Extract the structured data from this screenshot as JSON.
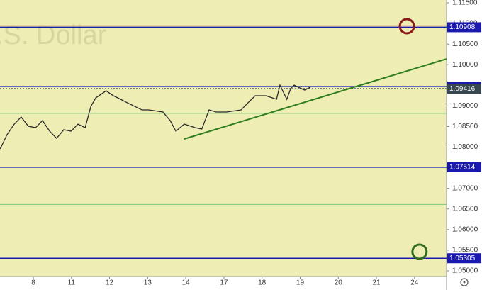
{
  "chart_data": {
    "type": "line",
    "watermark": ".S. Dollar",
    "x": [
      -0.87,
      -0.69,
      -0.5,
      -0.32,
      -0.13,
      0.06,
      0.24,
      0.43,
      0.61,
      0.8,
      0.99,
      1.17,
      1.36,
      1.51,
      1.64,
      1.91,
      2.1,
      2.29,
      2.47,
      2.66,
      2.85,
      3.03,
      3.4,
      3.59,
      3.74,
      3.96,
      4.24,
      4.42,
      4.61,
      4.8,
      5.07,
      5.45,
      5.63,
      5.82,
      6.1,
      6.38,
      6.47,
      6.65,
      6.75,
      6.84,
      7.03,
      7.12,
      7.27
    ],
    "series": [
      {
        "color": "#2b2b2b",
        "values": [
          1.07957,
          1.08301,
          1.08559,
          1.08731,
          1.08508,
          1.08473,
          1.08645,
          1.08387,
          1.08215,
          1.08422,
          1.08387,
          1.08559,
          1.08473,
          1.08989,
          1.09196,
          1.09367,
          1.09247,
          1.09161,
          1.09075,
          1.08989,
          1.08903,
          1.08903,
          1.08852,
          1.08645,
          1.08387,
          1.08559,
          1.08473,
          1.08439,
          1.08903,
          1.08852,
          1.08852,
          1.08903,
          1.09075,
          1.09247,
          1.09247,
          1.09161,
          1.09505,
          1.09161,
          1.09419,
          1.09505,
          1.09419,
          1.09385,
          1.09454
        ]
      }
    ],
    "xlim": [
      -0.874,
      10.84
    ],
    "ylim": [
      1.04862,
      1.11569
    ],
    "xticks": [
      {
        "value": 0,
        "label": "8"
      },
      {
        "value": 1,
        "label": "11"
      },
      {
        "value": 2,
        "label": "12"
      },
      {
        "value": 3,
        "label": "13"
      },
      {
        "value": 4,
        "label": "14"
      },
      {
        "value": 5,
        "label": "17"
      },
      {
        "value": 6,
        "label": "18"
      },
      {
        "value": 7,
        "label": "19"
      },
      {
        "value": 8,
        "label": "20"
      },
      {
        "value": 9,
        "label": "21"
      },
      {
        "value": 10,
        "label": "24"
      }
    ],
    "yticks": [
      {
        "value": 1.115,
        "label": "1.11500"
      },
      {
        "value": 1.11,
        "label": "1.11000"
      },
      {
        "value": 1.105,
        "label": "1.10500"
      },
      {
        "value": 1.1,
        "label": "1.10000"
      },
      {
        "value": 1.095,
        "label": "1.09500"
      },
      {
        "value": 1.09,
        "label": "1.09000"
      },
      {
        "value": 1.085,
        "label": "1.08500"
      },
      {
        "value": 1.08,
        "label": "1.08000"
      },
      {
        "value": 1.075,
        "label": "1.07500"
      },
      {
        "value": 1.07,
        "label": "1.07000"
      },
      {
        "value": 1.065,
        "label": "1.06500"
      },
      {
        "value": 1.06,
        "label": "1.06000"
      },
      {
        "value": 1.055,
        "label": "1.05500"
      },
      {
        "value": 1.05,
        "label": "1.05000"
      }
    ],
    "levels": [
      {
        "value": 1.10908,
        "label": "1.10908",
        "color": "#1a1ab0"
      },
      {
        "value": 1.09468,
        "label": "1.09468",
        "color": "#1a1ab0"
      },
      {
        "value": 1.09416,
        "label": "1.09416",
        "color": "#37474f"
      },
      {
        "value": 1.07514,
        "label": "1.07514",
        "color": "#1a1ab0"
      },
      {
        "value": 1.05305,
        "label": "1.05305",
        "color": "#1a1ab0"
      },
      {
        "value": 1.0882,
        "color": "#7cc47c"
      },
      {
        "value": 1.0661,
        "color": "#7cc47c"
      }
    ],
    "trendline": {
      "color": "#2e7d1e",
      "x": [
        3.96,
        10.84
      ],
      "values": [
        1.08198,
        1.10141
      ]
    },
    "targets": [
      {
        "x": 9.8,
        "value": 1.10933,
        "color": "#8b1a1a"
      },
      {
        "x": 10.13,
        "value": 1.05464,
        "color": "#2e6b1e"
      }
    ]
  }
}
